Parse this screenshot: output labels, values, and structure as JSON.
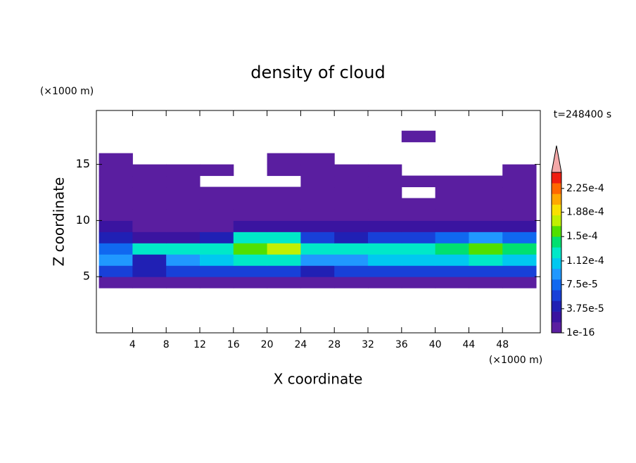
{
  "chart_data": {
    "type": "contour",
    "title": "density of cloud",
    "x_label": "X coordinate",
    "y_label": "Z coordinate",
    "x_unit": "(×1000 m)",
    "y_unit": "(×1000 m)",
    "time_label": "t=248400 s",
    "xlim": [
      -0.3,
      52.5
    ],
    "ylim": [
      0,
      19.8
    ],
    "xticks": [
      4,
      8,
      12,
      16,
      20,
      24,
      28,
      32,
      36,
      40,
      44,
      48
    ],
    "yticks": [
      5,
      10,
      15
    ],
    "x": [
      2,
      6,
      10,
      14,
      18,
      22,
      26,
      30,
      34,
      38,
      42,
      46,
      50
    ],
    "z": [
      4.5,
      5.5,
      6.5,
      7.5,
      8.5,
      9.5,
      10.5,
      11.5,
      12.5,
      13.5,
      14.5,
      15.5,
      16.5,
      17.5
    ],
    "values": [
      [
        5e-06,
        5e-06,
        5e-06,
        5e-06,
        5e-06,
        5e-06,
        5e-06,
        5e-06,
        5e-06,
        5e-06,
        5e-06,
        5e-06,
        5e-06
      ],
      [
        6e-05,
        4e-05,
        6e-05,
        6e-05,
        6e-05,
        6e-05,
        5e-05,
        6e-05,
        6e-05,
        6e-05,
        6e-05,
        6e-05,
        6e-05
      ],
      [
        9e-05,
        5e-05,
        0.0001,
        0.00011,
        0.00012,
        0.00012,
        0.0001,
        0.0001,
        0.00011,
        0.00011,
        0.00011,
        0.00012,
        0.00011
      ],
      [
        7e-05,
        0.00012,
        0.00013,
        0.00012,
        0.00016,
        0.00017,
        0.00012,
        0.00012,
        0.00013,
        0.00013,
        0.00014,
        0.00016,
        0.00015
      ],
      [
        4e-05,
        2e-05,
        3e-05,
        5e-05,
        0.00013,
        0.00013,
        6e-05,
        4e-05,
        6e-05,
        6e-05,
        7e-05,
        0.0001,
        7e-05
      ],
      [
        2e-05,
        1e-05,
        1e-05,
        1e-05,
        2e-05,
        2e-05,
        2e-05,
        2e-05,
        2e-05,
        2e-05,
        2e-05,
        2e-05,
        2e-05
      ],
      [
        1e-05,
        1e-05,
        1e-05,
        1e-05,
        1e-05,
        1e-05,
        1e-05,
        1e-05,
        1e-05,
        1e-05,
        1e-05,
        1e-05,
        1e-05
      ],
      [
        5e-06,
        5e-06,
        5e-06,
        5e-06,
        5e-06,
        5e-06,
        5e-06,
        1e-05,
        5e-06,
        5e-06,
        5e-06,
        5e-06,
        5e-06
      ],
      [
        5e-06,
        5e-06,
        5e-06,
        5e-06,
        5e-06,
        5e-06,
        5e-06,
        1e-05,
        5e-06,
        null,
        5e-06,
        5e-06,
        5e-06
      ],
      [
        5e-06,
        5e-06,
        5e-06,
        null,
        null,
        null,
        5e-06,
        5e-06,
        5e-06,
        5e-06,
        5e-06,
        5e-06,
        5e-06
      ],
      [
        5e-06,
        5e-06,
        5e-06,
        5e-06,
        null,
        5e-06,
        5e-06,
        5e-06,
        5e-06,
        null,
        null,
        null,
        5e-06
      ],
      [
        5e-06,
        null,
        null,
        null,
        null,
        5e-06,
        5e-06,
        null,
        null,
        null,
        null,
        null,
        null
      ],
      [
        null,
        null,
        null,
        null,
        null,
        null,
        null,
        null,
        null,
        null,
        null,
        null,
        null
      ],
      [
        null,
        null,
        null,
        null,
        null,
        null,
        null,
        null,
        null,
        5e-06,
        null,
        null,
        null
      ]
    ],
    "clim": [
      1e-16,
      0.00025
    ],
    "colors": [
      "#5a1ea0",
      "#3a14a0",
      "#2020b4",
      "#1840d8",
      "#1068f0",
      "#2098ff",
      "#00c8f0",
      "#00e8c8",
      "#00e070",
      "#50e000",
      "#c0f000",
      "#f8e000",
      "#ffa800",
      "#ff6800",
      "#f01e10"
    ],
    "extend_color": "#f4a8a8",
    "cticks": [
      {
        "value": 1e-16,
        "label": "1e-16"
      },
      {
        "value": 3.75e-05,
        "label": "3.75e-5"
      },
      {
        "value": 7.5e-05,
        "label": "7.5e-5"
      },
      {
        "value": 0.000112,
        "label": "1.12e-4"
      },
      {
        "value": 0.00015,
        "label": "1.5e-4"
      },
      {
        "value": 0.000188,
        "label": "1.88e-4"
      },
      {
        "value": 0.000225,
        "label": "2.25e-4"
      }
    ]
  }
}
